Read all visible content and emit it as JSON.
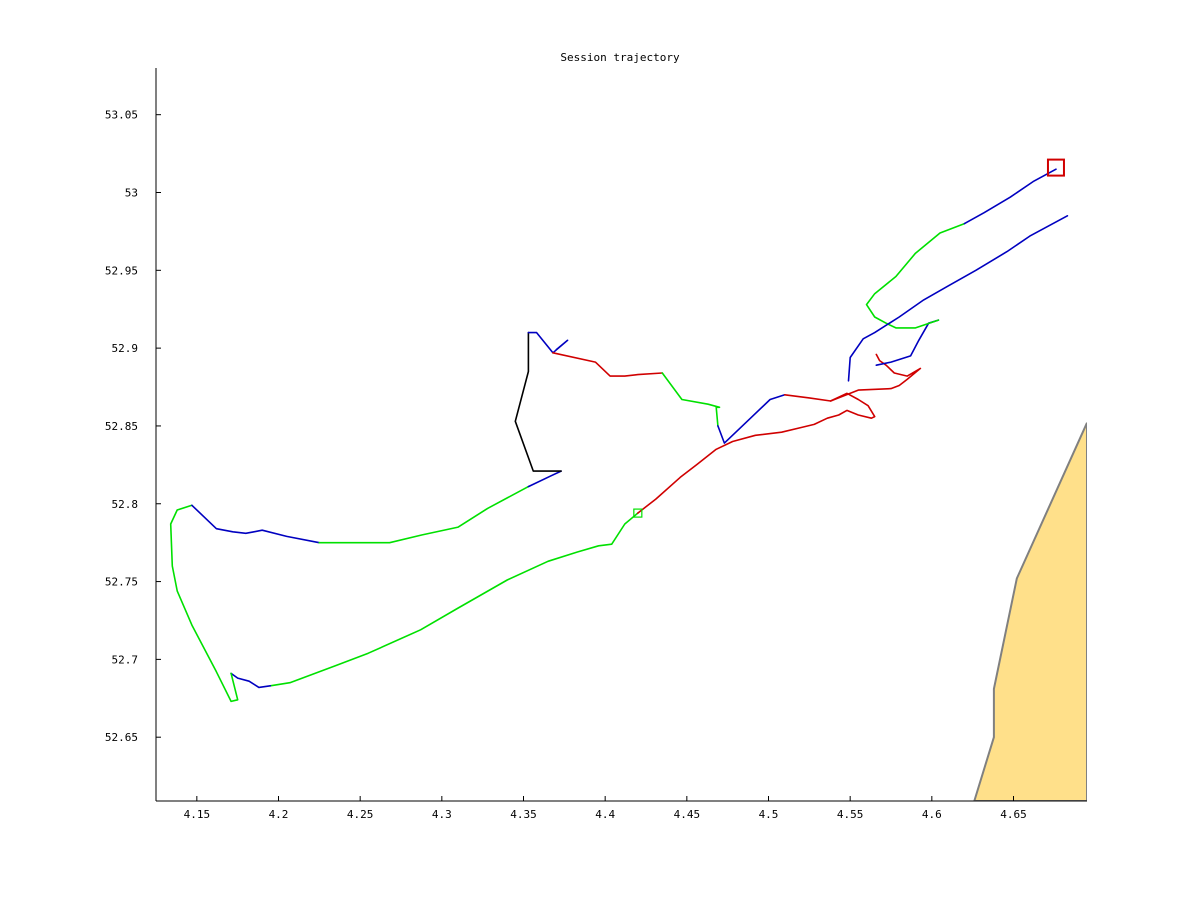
{
  "chart_data": {
    "type": "line",
    "title": "Session trajectory",
    "xlabel": "",
    "ylabel": "",
    "xlim": [
      4.125,
      4.695
    ],
    "ylim": [
      52.609,
      53.08
    ],
    "x_ticks": [
      "4.15",
      "4.2",
      "4.25",
      "4.3",
      "4.35",
      "4.4",
      "4.45",
      "4.5",
      "4.55",
      "4.6",
      "4.65"
    ],
    "y_ticks": [
      "52.65",
      "52.7",
      "52.75",
      "52.8",
      "52.85",
      "52.9",
      "52.95",
      "53",
      "53.05"
    ],
    "grid": false,
    "legend": "none",
    "colors": {
      "green": "#00e000",
      "blue": "#0000c0",
      "red": "#d00000",
      "black": "#000000",
      "land_fill": "#ffe08a",
      "land_edge": "#808080"
    },
    "land": [
      [
        4.626,
        52.609
      ],
      [
        4.638,
        52.65
      ],
      [
        4.638,
        52.681
      ],
      [
        4.652,
        52.752
      ],
      [
        4.695,
        52.852
      ],
      [
        4.695,
        52.609
      ]
    ],
    "series": [
      {
        "color": "green",
        "points": [
          [
            4.42,
            52.794
          ],
          [
            4.412,
            52.787
          ],
          [
            4.404,
            52.774
          ],
          [
            4.396,
            52.773
          ],
          [
            4.383,
            52.769
          ],
          [
            4.365,
            52.763
          ],
          [
            4.34,
            52.751
          ],
          [
            4.31,
            52.733
          ],
          [
            4.287,
            52.719
          ],
          [
            4.255,
            52.704
          ],
          [
            4.235,
            52.696
          ],
          [
            4.207,
            52.685
          ],
          [
            4.195,
            52.683
          ]
        ]
      },
      {
        "color": "blue",
        "points": [
          [
            4.195,
            52.683
          ],
          [
            4.188,
            52.682
          ],
          [
            4.182,
            52.686
          ],
          [
            4.175,
            52.688
          ],
          [
            4.171,
            52.691
          ]
        ]
      },
      {
        "color": "green",
        "points": [
          [
            4.171,
            52.691
          ],
          [
            4.175,
            52.674
          ],
          [
            4.171,
            52.673
          ],
          [
            4.162,
            52.692
          ],
          [
            4.147,
            52.722
          ],
          [
            4.138,
            52.744
          ],
          [
            4.135,
            52.76
          ],
          [
            4.134,
            52.787
          ],
          [
            4.138,
            52.796
          ],
          [
            4.147,
            52.799
          ]
        ]
      },
      {
        "color": "blue",
        "points": [
          [
            4.147,
            52.799
          ],
          [
            4.162,
            52.784
          ],
          [
            4.172,
            52.782
          ],
          [
            4.18,
            52.781
          ],
          [
            4.185,
            52.782
          ],
          [
            4.19,
            52.783
          ],
          [
            4.205,
            52.779
          ],
          [
            4.225,
            52.775
          ]
        ]
      },
      {
        "color": "green",
        "points": [
          [
            4.225,
            52.775
          ],
          [
            4.25,
            52.775
          ],
          [
            4.268,
            52.775
          ],
          [
            4.288,
            52.78
          ],
          [
            4.31,
            52.785
          ],
          [
            4.328,
            52.797
          ],
          [
            4.353,
            52.811
          ]
        ]
      },
      {
        "color": "blue",
        "points": [
          [
            4.353,
            52.811
          ],
          [
            4.367,
            52.818
          ],
          [
            4.373,
            52.821
          ]
        ]
      },
      {
        "color": "black",
        "points": [
          [
            4.373,
            52.821
          ],
          [
            4.356,
            52.821
          ],
          [
            4.345,
            52.853
          ],
          [
            4.353,
            52.885
          ],
          [
            4.353,
            52.91
          ]
        ]
      },
      {
        "color": "blue",
        "points": [
          [
            4.353,
            52.91
          ],
          [
            4.358,
            52.91
          ],
          [
            4.368,
            52.897
          ],
          [
            4.377,
            52.905
          ],
          [
            4.37,
            52.899
          ]
        ]
      },
      {
        "color": "red",
        "points": [
          [
            4.368,
            52.897
          ],
          [
            4.394,
            52.891
          ],
          [
            4.403,
            52.882
          ],
          [
            4.412,
            52.882
          ],
          [
            4.42,
            52.883
          ],
          [
            4.435,
            52.884
          ]
        ]
      },
      {
        "color": "green",
        "points": [
          [
            4.435,
            52.884
          ],
          [
            4.447,
            52.867
          ],
          [
            4.463,
            52.864
          ],
          [
            4.47,
            52.862
          ],
          [
            4.468,
            52.862
          ],
          [
            4.469,
            52.85
          ]
        ]
      },
      {
        "color": "blue",
        "points": [
          [
            4.469,
            52.85
          ],
          [
            4.473,
            52.839
          ],
          [
            4.49,
            52.856
          ],
          [
            4.501,
            52.867
          ],
          [
            4.51,
            52.87
          ]
        ]
      },
      {
        "color": "red",
        "points": [
          [
            4.51,
            52.87
          ],
          [
            4.525,
            52.868
          ],
          [
            4.538,
            52.866
          ],
          [
            4.548,
            52.871
          ],
          [
            4.555,
            52.867
          ],
          [
            4.561,
            52.863
          ],
          [
            4.565,
            52.856
          ],
          [
            4.563,
            52.855
          ],
          [
            4.555,
            52.857
          ],
          [
            4.548,
            52.86
          ],
          [
            4.543,
            52.857
          ],
          [
            4.536,
            52.855
          ],
          [
            4.528,
            52.851
          ],
          [
            4.52,
            52.849
          ],
          [
            4.508,
            52.846
          ],
          [
            4.492,
            52.844
          ],
          [
            4.478,
            52.84
          ],
          [
            4.468,
            52.835
          ],
          [
            4.456,
            52.825
          ],
          [
            4.446,
            52.817
          ],
          [
            4.431,
            52.803
          ],
          [
            4.42,
            52.794
          ]
        ]
      },
      {
        "color": "red",
        "points": [
          [
            4.538,
            52.866
          ],
          [
            4.555,
            52.873
          ],
          [
            4.575,
            52.874
          ],
          [
            4.58,
            52.876
          ],
          [
            4.585,
            52.88
          ],
          [
            4.593,
            52.887
          ],
          [
            4.585,
            52.882
          ],
          [
            4.577,
            52.884
          ],
          [
            4.572,
            52.889
          ],
          [
            4.568,
            52.892
          ],
          [
            4.566,
            52.896
          ]
        ]
      },
      {
        "color": "blue",
        "points": [
          [
            4.566,
            52.889
          ],
          [
            4.575,
            52.891
          ],
          [
            4.587,
            52.895
          ],
          [
            4.592,
            52.905
          ],
          [
            4.598,
            52.916
          ],
          [
            4.604,
            52.918
          ]
        ]
      },
      {
        "color": "green",
        "points": [
          [
            4.604,
            52.918
          ],
          [
            4.59,
            52.913
          ],
          [
            4.578,
            52.913
          ],
          [
            4.572,
            52.916
          ],
          [
            4.565,
            52.92
          ],
          [
            4.56,
            52.928
          ],
          [
            4.565,
            52.935
          ],
          [
            4.578,
            52.946
          ],
          [
            4.59,
            52.961
          ],
          [
            4.605,
            52.974
          ],
          [
            4.62,
            52.98
          ]
        ]
      },
      {
        "color": "blue",
        "points": [
          [
            4.62,
            52.98
          ],
          [
            4.632,
            52.987
          ],
          [
            4.648,
            52.997
          ],
          [
            4.662,
            53.007
          ],
          [
            4.676,
            53.015
          ]
        ]
      },
      {
        "color": "blue",
        "points": [
          [
            4.683,
            52.985
          ],
          [
            4.66,
            52.972
          ],
          [
            4.646,
            52.962
          ],
          [
            4.627,
            52.95
          ],
          [
            4.61,
            52.94
          ],
          [
            4.595,
            52.931
          ],
          [
            4.58,
            52.92
          ],
          [
            4.565,
            52.91
          ],
          [
            4.558,
            52.906
          ],
          [
            4.55,
            52.894
          ],
          [
            4.549,
            52.879
          ]
        ]
      }
    ],
    "markers": [
      {
        "color": "green",
        "shape": "square",
        "x": 4.42,
        "y": 52.794
      },
      {
        "color": "red",
        "shape": "square",
        "x": 4.676,
        "y": 53.016
      }
    ]
  }
}
